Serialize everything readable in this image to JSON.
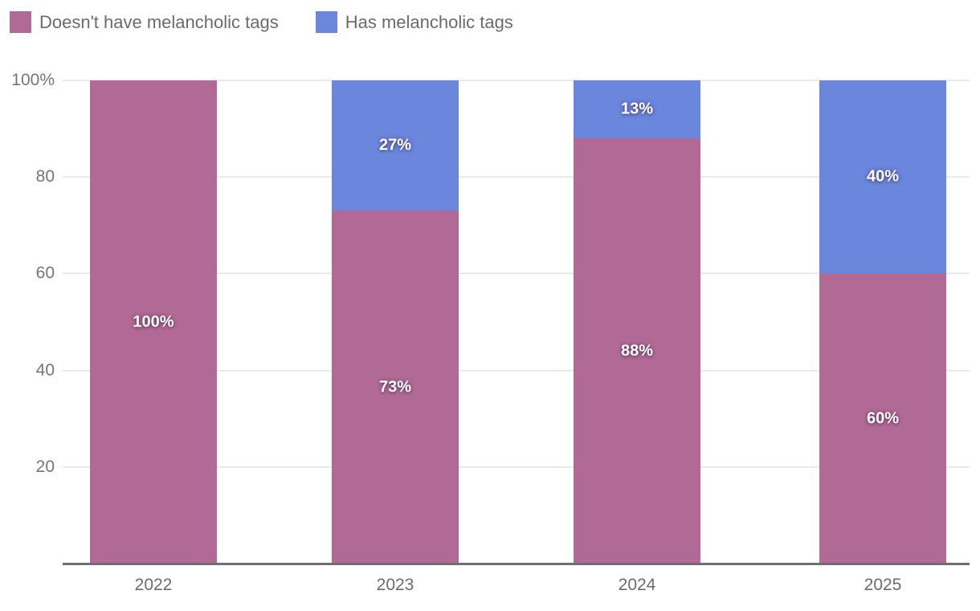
{
  "legend": {
    "items": [
      {
        "label": "Doesn't have melancholic tags",
        "color": "#b16a95"
      },
      {
        "label": "Has melancholic tags",
        "color": "#6b86dd"
      }
    ]
  },
  "chart_data": {
    "type": "bar",
    "stacked": true,
    "percent_stacked": true,
    "title": "",
    "xlabel": "",
    "ylabel": "",
    "unit": "%",
    "categories": [
      "2022",
      "2023",
      "2024",
      "2025"
    ],
    "series": [
      {
        "name": "Doesn't have melancholic tags",
        "color": "#b16a95",
        "values": [
          100,
          73,
          88,
          60
        ],
        "labels": [
          "100%",
          "73%",
          "88%",
          "60%"
        ]
      },
      {
        "name": "Has melancholic tags",
        "color": "#6b86dd",
        "values": [
          0,
          27,
          13,
          40
        ],
        "labels": [
          "",
          "27%",
          "13%",
          "40%"
        ]
      }
    ],
    "ylim": [
      0,
      100
    ],
    "yticks": [
      {
        "value": 20,
        "label": "20"
      },
      {
        "value": 40,
        "label": "40"
      },
      {
        "value": 60,
        "label": "60"
      },
      {
        "value": 80,
        "label": "80"
      },
      {
        "value": 100,
        "label": "100%"
      }
    ],
    "grid": true,
    "legend_position": "top-left",
    "colors": {
      "gridline": "#eaeaea",
      "axis_line": "#6e6e6e",
      "tick_text": "#757575",
      "legend_text": "#6b6b6b",
      "bar_label_text": "#ffffff"
    }
  }
}
